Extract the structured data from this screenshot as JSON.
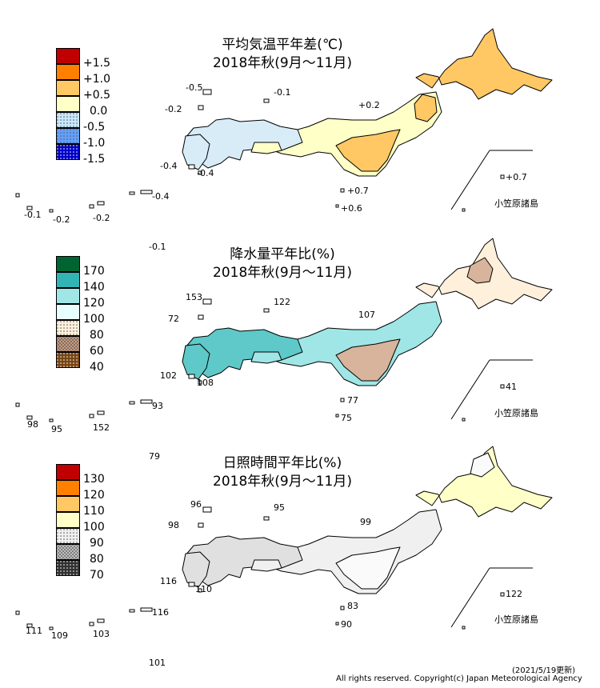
{
  "footer": {
    "update": "(2021/5/19更新)",
    "copyright": "All rights reserved. Copyright(c) Japan Meteorological Agency"
  },
  "patterns": {
    "dots": "dot-pattern",
    "hatch": "crosshatch-pattern"
  },
  "panels": [
    {
      "id": "temperature",
      "title_line1": "平均気温平年差(℃)",
      "title_line2": "2018年秋(9月～11月)",
      "inset_label": "小笠原諸島",
      "legend": [
        {
          "label": "+1.5",
          "color": "#c00000",
          "fill": "solid"
        },
        {
          "label": "+1.0",
          "color": "#ff8000",
          "fill": "solid"
        },
        {
          "label": "+0.5",
          "color": "#ffc864",
          "fill": "solid"
        },
        {
          "label": "0.0",
          "color": "#ffffc8",
          "fill": "solid"
        },
        {
          "label": "-0.5",
          "color": "#c8e8ff",
          "fill": "dots"
        },
        {
          "label": "-1.0",
          "color": "#64a0ff",
          "fill": "dots"
        },
        {
          "label": "-1.5",
          "color": "#0000c8",
          "fill": "dots"
        }
      ],
      "region_colors": {
        "north": "#ffc864",
        "east": "#ffc864",
        "central": "#ffffc8",
        "west": "#d8ecf8"
      },
      "station_values": [
        "-0.5",
        "-0.1",
        "-0.2",
        "+0.2",
        "-0.4",
        "-0.4",
        "-0.1",
        "-0.2",
        "-0.2",
        "-0.4",
        "+0.7",
        "+0.6",
        "+0.7",
        "-0.1"
      ]
    },
    {
      "id": "precipitation",
      "title_line1": "降水量平年比(%)",
      "title_line2": "2018年秋(9月～11月)",
      "inset_label": "小笠原諸島",
      "legend": [
        {
          "label": "170",
          "color": "#006432",
          "fill": "solid"
        },
        {
          "label": "140",
          "color": "#32b4b4",
          "fill": "solid"
        },
        {
          "label": "120",
          "color": "#a0e6e6",
          "fill": "solid"
        },
        {
          "label": "100",
          "color": "#e8ffff",
          "fill": "solid"
        },
        {
          "label": "80",
          "color": "#fff0dc",
          "fill": "dots"
        },
        {
          "label": "60",
          "color": "#d2a082",
          "fill": "hatch"
        },
        {
          "label": "40",
          "color": "#784614",
          "fill": "dots"
        }
      ],
      "region_colors": {
        "north": "#fff0dc",
        "east": "#d7b49b",
        "central": "#a0e6e6",
        "west": "#5fc8c8"
      },
      "station_values": [
        "153",
        "122",
        "72",
        "107",
        "102",
        "108",
        "77",
        "75",
        "41",
        "98",
        "95",
        "152",
        "93",
        "79"
      ]
    },
    {
      "id": "sunshine",
      "title_line1": "日照時間平年比(%)",
      "title_line2": "2018年秋(9月～11月)",
      "inset_label": "小笠原諸島",
      "legend": [
        {
          "label": "130",
          "color": "#c00000",
          "fill": "solid"
        },
        {
          "label": "120",
          "color": "#ff8000",
          "fill": "solid"
        },
        {
          "label": "110",
          "color": "#ffc864",
          "fill": "solid"
        },
        {
          "label": "100",
          "color": "#ffffc8",
          "fill": "solid"
        },
        {
          "label": "90",
          "color": "#f0f0f0",
          "fill": "dots"
        },
        {
          "label": "80",
          "color": "#c8c8c8",
          "fill": "hatch"
        },
        {
          "label": "70",
          "color": "#323232",
          "fill": "dots"
        }
      ],
      "region_colors": {
        "north": "#ffffc8",
        "east": "#fafafa",
        "central": "#f0f0f0",
        "west": "#e0e0e0"
      },
      "station_values": [
        "96",
        "95",
        "98",
        "99",
        "116",
        "110",
        "83",
        "90",
        "122",
        "111",
        "109",
        "103",
        "116",
        "101"
      ]
    }
  ]
}
